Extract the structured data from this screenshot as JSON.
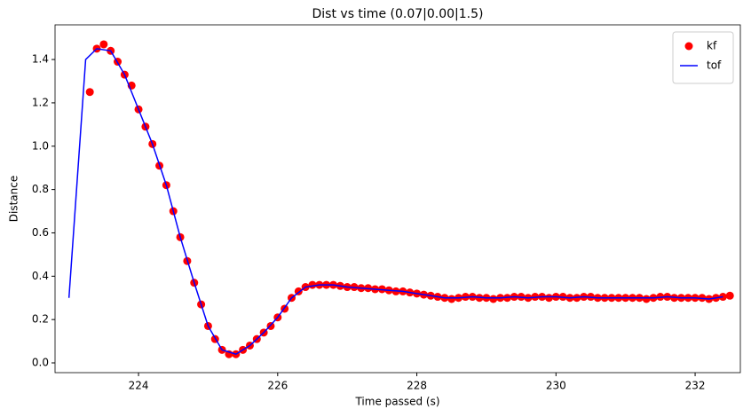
{
  "chart_data": {
    "type": "scatter",
    "title": "Dist vs time (0.07|0.00|1.5)",
    "x_label": "Time passed (s)",
    "y_label": "Distance",
    "xlim": [
      222.8,
      232.65
    ],
    "ylim": [
      -0.045,
      1.56
    ],
    "xticks": [
      224,
      226,
      228,
      230,
      232
    ],
    "yticks": [
      {
        "value": 0,
        "label": "0.0"
      },
      0.2,
      0.4,
      0.6,
      0.8,
      {
        "value": 1,
        "label": "1.0"
      },
      1.2,
      1.4
    ],
    "grid": false,
    "legend": "upper right",
    "series": [
      {
        "name": "kf",
        "type": "scatter",
        "color": "#ff0000",
        "x": [
          223.3,
          223.4,
          223.5,
          223.6,
          223.7,
          223.8,
          223.9,
          224.0,
          224.1,
          224.2,
          224.3,
          224.4,
          224.5,
          224.6,
          224.7,
          224.8,
          224.9,
          225.0,
          225.1,
          225.2,
          225.3,
          225.4,
          225.5,
          225.6,
          225.7,
          225.8,
          225.9,
          226.0,
          226.1,
          226.2,
          226.3,
          226.4,
          226.5,
          226.6,
          226.7,
          226.8,
          226.9,
          227.0,
          227.1,
          227.2,
          227.3,
          227.4,
          227.5,
          227.6,
          227.7,
          227.8,
          227.9,
          228.0,
          228.1,
          228.2,
          228.3,
          228.4,
          228.5,
          228.6,
          228.7,
          228.8,
          228.9,
          229.0,
          229.1,
          229.2,
          229.3,
          229.4,
          229.5,
          229.6,
          229.7,
          229.8,
          229.9,
          230.0,
          230.1,
          230.2,
          230.3,
          230.4,
          230.5,
          230.6,
          230.7,
          230.8,
          230.9,
          231.0,
          231.1,
          231.2,
          231.3,
          231.4,
          231.5,
          231.6,
          231.7,
          231.8,
          231.9,
          232.0,
          232.1,
          232.2,
          232.3,
          232.4,
          232.5
        ],
        "values": [
          1.25,
          1.45,
          1.47,
          1.44,
          1.39,
          1.33,
          1.28,
          1.17,
          1.09,
          1.01,
          0.91,
          0.82,
          0.7,
          0.58,
          0.47,
          0.37,
          0.27,
          0.17,
          0.11,
          0.06,
          0.04,
          0.04,
          0.06,
          0.08,
          0.11,
          0.14,
          0.17,
          0.21,
          0.25,
          0.3,
          0.33,
          0.35,
          0.36,
          0.36,
          0.36,
          0.36,
          0.355,
          0.35,
          0.35,
          0.345,
          0.345,
          0.34,
          0.34,
          0.335,
          0.33,
          0.33,
          0.325,
          0.32,
          0.315,
          0.31,
          0.305,
          0.3,
          0.295,
          0.3,
          0.305,
          0.305,
          0.3,
          0.3,
          0.295,
          0.3,
          0.3,
          0.305,
          0.305,
          0.3,
          0.305,
          0.305,
          0.3,
          0.305,
          0.305,
          0.3,
          0.3,
          0.305,
          0.305,
          0.3,
          0.3,
          0.3,
          0.3,
          0.3,
          0.3,
          0.3,
          0.295,
          0.3,
          0.305,
          0.305,
          0.3,
          0.3,
          0.3,
          0.3,
          0.3,
          0.295,
          0.3,
          0.305,
          0.31
        ]
      },
      {
        "name": "tof",
        "type": "line",
        "color": "#0000ff",
        "x": [
          223.0,
          223.24,
          223.4,
          223.6,
          223.8,
          224.0,
          224.2,
          224.4,
          224.6,
          224.8,
          225.0,
          225.2,
          225.4,
          225.6,
          225.8,
          226.0,
          226.2,
          226.4,
          226.6,
          226.8,
          227.0,
          227.2,
          227.4,
          227.6,
          227.8,
          228.0,
          228.2,
          228.4,
          228.6,
          228.8,
          229.0,
          229.2,
          229.4,
          229.6,
          229.8,
          230.0,
          230.2,
          230.4,
          230.6,
          230.8,
          231.0,
          231.2,
          231.4,
          231.6,
          231.8,
          232.0,
          232.2,
          232.4
        ],
        "values": [
          0.3,
          1.4,
          1.45,
          1.44,
          1.33,
          1.17,
          1.01,
          0.82,
          0.58,
          0.37,
          0.17,
          0.06,
          0.04,
          0.08,
          0.14,
          0.21,
          0.3,
          0.35,
          0.36,
          0.36,
          0.35,
          0.345,
          0.34,
          0.335,
          0.33,
          0.32,
          0.31,
          0.3,
          0.3,
          0.305,
          0.3,
          0.3,
          0.305,
          0.3,
          0.305,
          0.305,
          0.3,
          0.305,
          0.3,
          0.3,
          0.3,
          0.3,
          0.3,
          0.305,
          0.3,
          0.3,
          0.295,
          0.305
        ]
      }
    ]
  }
}
